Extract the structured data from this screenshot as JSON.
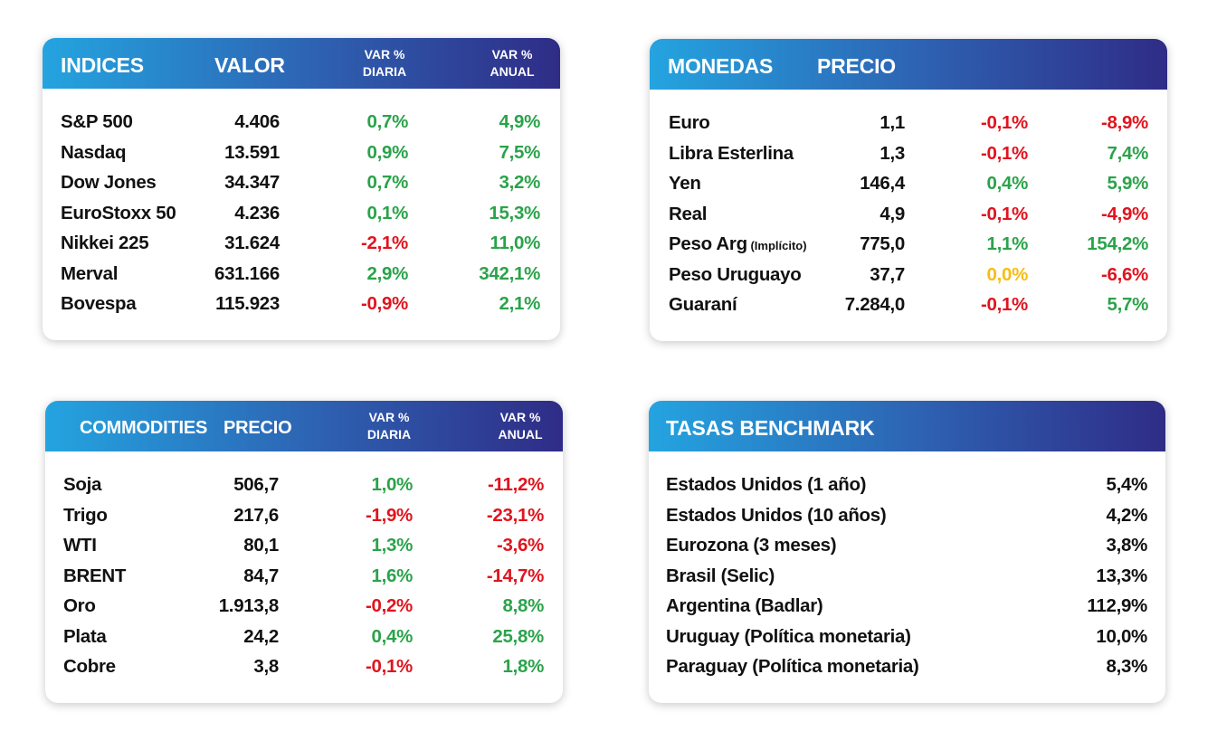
{
  "indices": {
    "header": {
      "col1": "INDICES",
      "col2": "VALOR",
      "col3_line1": "VAR %",
      "col3_line2": "DIARIA",
      "col4_line1": "VAR %",
      "col4_line2": "ANUAL"
    },
    "rows": [
      {
        "name": "S&P 500",
        "value": "4.406",
        "daily": "0,7%",
        "daily_sign": "pos",
        "annual": "4,9%",
        "annual_sign": "pos"
      },
      {
        "name": "Nasdaq",
        "value": "13.591",
        "daily": "0,9%",
        "daily_sign": "pos",
        "annual": "7,5%",
        "annual_sign": "pos"
      },
      {
        "name": "Dow Jones",
        "value": "34.347",
        "daily": "0,7%",
        "daily_sign": "pos",
        "annual": "3,2%",
        "annual_sign": "pos"
      },
      {
        "name": "EuroStoxx 50",
        "value": "4.236",
        "daily": "0,1%",
        "daily_sign": "pos",
        "annual": "15,3%",
        "annual_sign": "pos"
      },
      {
        "name": "Nikkei 225",
        "value": "31.624",
        "daily": "-2,1%",
        "daily_sign": "neg",
        "annual": "11,0%",
        "annual_sign": "pos"
      },
      {
        "name": "Merval",
        "value": "631.166",
        "daily": "2,9%",
        "daily_sign": "pos",
        "annual": "342,1%",
        "annual_sign": "pos"
      },
      {
        "name": "Bovespa",
        "value": "115.923",
        "daily": "-0,9%",
        "daily_sign": "neg",
        "annual": "2,1%",
        "annual_sign": "pos"
      }
    ]
  },
  "monedas": {
    "header": {
      "col1": "MONEDAS",
      "col2": "PRECIO"
    },
    "rows": [
      {
        "name": "Euro",
        "note": "",
        "value": "1,1",
        "daily": "-0,1%",
        "daily_sign": "neg",
        "annual": "-8,9%",
        "annual_sign": "neg"
      },
      {
        "name": "Libra Esterlina",
        "note": "",
        "value": "1,3",
        "daily": "-0,1%",
        "daily_sign": "neg",
        "annual": "7,4%",
        "annual_sign": "pos"
      },
      {
        "name": "Yen",
        "note": "",
        "value": "146,4",
        "daily": "0,4%",
        "daily_sign": "pos",
        "annual": "5,9%",
        "annual_sign": "pos"
      },
      {
        "name": "Real",
        "note": "",
        "value": "4,9",
        "daily": "-0,1%",
        "daily_sign": "neg",
        "annual": "-4,9%",
        "annual_sign": "neg"
      },
      {
        "name": "Peso Arg",
        "note": "(Implícito)",
        "value": "775,0",
        "daily": "1,1%",
        "daily_sign": "pos",
        "annual": "154,2%",
        "annual_sign": "pos"
      },
      {
        "name": "Peso Uruguayo",
        "note": "",
        "value": "37,7",
        "daily": "0,0%",
        "daily_sign": "neu",
        "annual": "-6,6%",
        "annual_sign": "neg"
      },
      {
        "name": "Guaraní",
        "note": "",
        "value": "7.284,0",
        "daily": "-0,1%",
        "daily_sign": "neg",
        "annual": "5,7%",
        "annual_sign": "pos"
      }
    ]
  },
  "commodities": {
    "header": {
      "col1": "COMMODITIES",
      "col2": "PRECIO",
      "col3_line1": "VAR %",
      "col3_line2": "DIARIA",
      "col4_line1": "VAR %",
      "col4_line2": "ANUAL"
    },
    "rows": [
      {
        "name": "Soja",
        "value": "506,7",
        "daily": "1,0%",
        "daily_sign": "pos",
        "annual": "-11,2%",
        "annual_sign": "neg"
      },
      {
        "name": "Trigo",
        "value": "217,6",
        "daily": "-1,9%",
        "daily_sign": "neg",
        "annual": "-23,1%",
        "annual_sign": "neg"
      },
      {
        "name": "WTI",
        "value": "80,1",
        "daily": "1,3%",
        "daily_sign": "pos",
        "annual": "-3,6%",
        "annual_sign": "neg"
      },
      {
        "name": "BRENT",
        "value": "84,7",
        "daily": "1,6%",
        "daily_sign": "pos",
        "annual": "-14,7%",
        "annual_sign": "neg"
      },
      {
        "name": "Oro",
        "value": "1.913,8",
        "daily": "-0,2%",
        "daily_sign": "neg",
        "annual": "8,8%",
        "annual_sign": "pos"
      },
      {
        "name": "Plata",
        "value": "24,2",
        "daily": "0,4%",
        "daily_sign": "pos",
        "annual": "25,8%",
        "annual_sign": "pos"
      },
      {
        "name": "Cobre",
        "value": "3,8",
        "daily": "-0,1%",
        "daily_sign": "neg",
        "annual": "1,8%",
        "annual_sign": "pos"
      }
    ]
  },
  "tasas": {
    "header": {
      "col1": "TASAS BENCHMARK"
    },
    "rows": [
      {
        "name": "Estados Unidos (1 año)",
        "value": "5,4%"
      },
      {
        "name": "Estados Unidos (10 años)",
        "value": "4,2%"
      },
      {
        "name": "Eurozona (3 meses)",
        "value": "3,8%"
      },
      {
        "name": "Brasil (Selic)",
        "value": "13,3%"
      },
      {
        "name": "Argentina (Badlar)",
        "value": "112,9%"
      },
      {
        "name": "Uruguay (Política monetaria)",
        "value": "10,0%"
      },
      {
        "name": "Paraguay (Política monetaria)",
        "value": "8,3%"
      }
    ]
  },
  "colors": {
    "positive": "#2aa34a",
    "negative": "#e0141e",
    "neutral": "#f6bd16",
    "header_gradient_start": "#24a4e0",
    "header_gradient_end": "#2f2c86"
  }
}
